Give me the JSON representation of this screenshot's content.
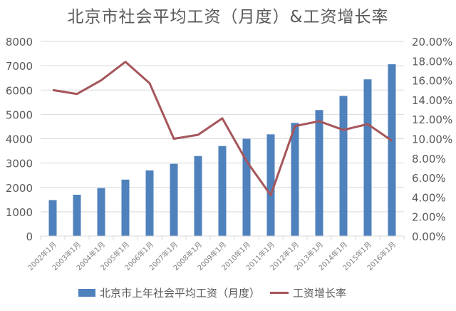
{
  "chart_data": {
    "type": "bar",
    "title": "北京市社会平均工资（月度）&工资增长率",
    "categories": [
      "2002年1月",
      "2003年1月",
      "2004年1月",
      "2005年1月",
      "2006年1月",
      "2007年1月",
      "2008年1月",
      "2009年1月",
      "2010年1月",
      "2011年1月",
      "2012年1月",
      "2013年1月",
      "2014年1月",
      "2015年1月",
      "2016年1月"
    ],
    "series": [
      {
        "name": "北京市上年社会平均工资（月度）",
        "type": "bar",
        "axis": "left",
        "color": "#4F81BD",
        "values": [
          1480,
          1700,
          1970,
          2320,
          2700,
          2970,
          3290,
          3700,
          4000,
          4180,
          4650,
          5180,
          5760,
          6440,
          7060
        ]
      },
      {
        "name": "工资增长率",
        "type": "line",
        "axis": "right",
        "color": "#A5565B",
        "values": [
          15.0,
          14.6,
          16.0,
          17.9,
          15.7,
          10.0,
          10.4,
          12.1,
          7.7,
          4.2,
          11.3,
          11.8,
          10.9,
          11.5,
          9.8
        ]
      }
    ],
    "y_left": {
      "ylim": [
        0,
        8000
      ],
      "ticks": [
        "0",
        "1000",
        "2000",
        "3000",
        "4000",
        "5000",
        "6000",
        "7000",
        "8000"
      ]
    },
    "y_right": {
      "ylim": [
        0,
        20
      ],
      "ticks": [
        "0.00%",
        "2.00%",
        "4.00%",
        "6.00%",
        "8.00%",
        "10.00%",
        "12.00%",
        "14.00%",
        "16.00%",
        "18.00%",
        "20.00%"
      ]
    },
    "xlabel": "",
    "ylabel": "",
    "grid": true,
    "legend_position": "bottom"
  },
  "legend": {
    "bar_label": "北京市上年社会平均工资（月度）",
    "line_label": "工资增长率"
  }
}
